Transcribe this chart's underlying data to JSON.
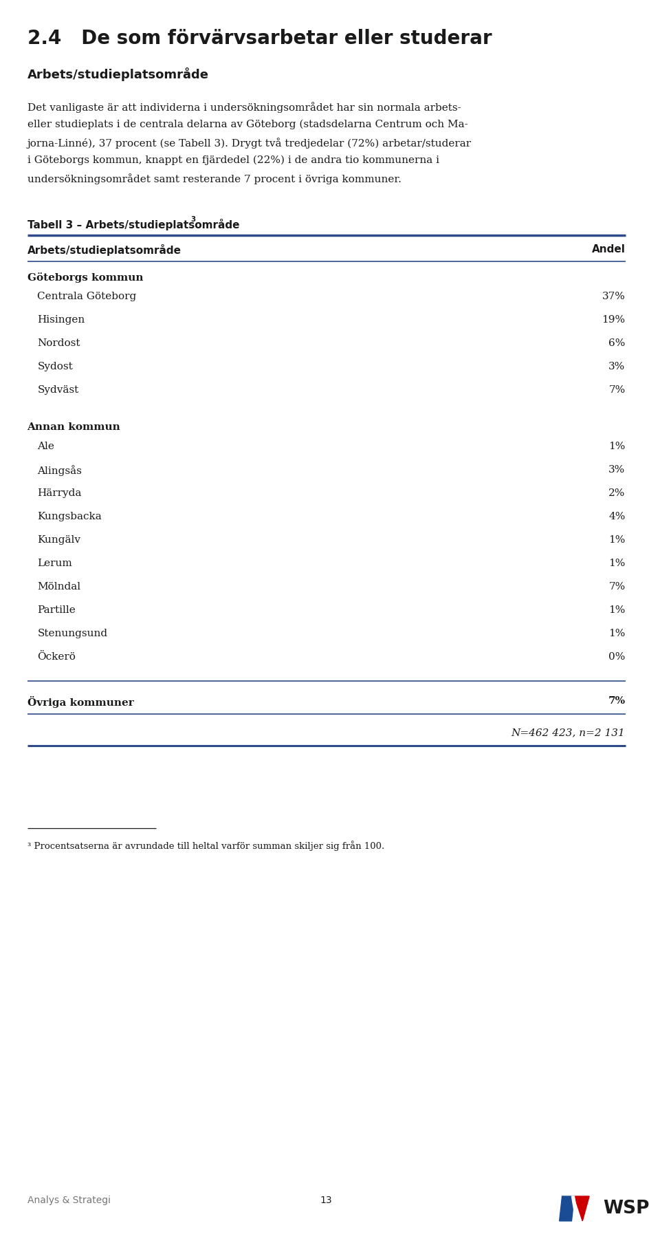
{
  "title": "2.4   De som förvärvsarbetar eller studerar",
  "subtitle": "Arbets/studieplatsområde",
  "body_lines": [
    "Det vanligaste är att individerna i undersökningsområdet har sin normala arbets-",
    "eller studieplats i de centrala delarna av Göteborg (stadsdelarna Centrum och Ma-",
    "jorna-Linné), 37 procent (se Tabell 3). Drygt två tredjedelar (72%) arbetar/studerar",
    "i Göteborgs kommun, knappt en fjärdedel (22%) i de andra tio kommunerna i",
    "undersökningsområdet samt resterande 7 procent i övriga kommuner."
  ],
  "table_title": "Tabell 3 – Arbets/studieplatsområde",
  "table_superscript": "3",
  "col1_header": "Arbets/studieplatsområde",
  "col2_header": "Andel",
  "group1_header": "Göteborgs kommun",
  "group1_rows": [
    [
      "Centrala Göteborg",
      "37%"
    ],
    [
      "Hisingen",
      "19%"
    ],
    [
      "Nordost",
      "6%"
    ],
    [
      "Sydost",
      "3%"
    ],
    [
      "Sydväst",
      "7%"
    ]
  ],
  "group2_header": "Annan kommun",
  "group2_rows": [
    [
      "Ale",
      "1%"
    ],
    [
      "Alingsås",
      "3%"
    ],
    [
      "Härryda",
      "2%"
    ],
    [
      "Kungsbacka",
      "4%"
    ],
    [
      "Kungälv",
      "1%"
    ],
    [
      "Lerum",
      "1%"
    ],
    [
      "Mölndal",
      "7%"
    ],
    [
      "Partille",
      "1%"
    ],
    [
      "Stenungsund",
      "1%"
    ],
    [
      "Öckerö",
      "0%"
    ]
  ],
  "group3_header": "Övriga kommuner",
  "group3_value": "7%",
  "footnote": "³ Procentsatserna är avrundade till heltal varför summan skiljer sig från 100.",
  "n_note": "N=462 423, n=2 131",
  "footer_left": "Analys & Strategi",
  "footer_center": "13",
  "bg_color": "#ffffff",
  "text_color": "#1a1a1a",
  "line_color": "#2E4A8B",
  "title_fontsize": 20,
  "subtitle_fontsize": 13,
  "body_fontsize": 11,
  "table_title_fontsize": 11,
  "table_header_fontsize": 11,
  "table_body_fontsize": 11,
  "footer_fontsize": 10
}
